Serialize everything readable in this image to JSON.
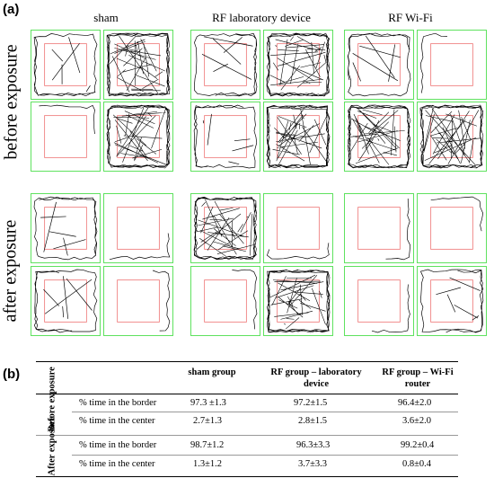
{
  "panel_a_label": "(a)",
  "panel_b_label": "(b)",
  "columns": [
    "sham",
    "RF laboratory device",
    "RF Wi-Fi"
  ],
  "rows": [
    "before exposure",
    "after exposure"
  ],
  "colors": {
    "arena_border": "#5fe25f",
    "center_zone": "#f08080",
    "track": "#000000"
  },
  "table": {
    "headers": [
      "sham group",
      "RF group – laboratory device",
      "RF group – Wi-Fi router"
    ],
    "groups": [
      {
        "label": "Before exposure",
        "rows": [
          {
            "measure": "% time in the border",
            "values": [
              "97.3 ±1.3",
              "97.2±1.5",
              "96.4±2.0"
            ]
          },
          {
            "measure": "% time in the center",
            "values": [
              "2.7±1.3",
              "2.8±1.5",
              "3.6±2.0"
            ]
          }
        ]
      },
      {
        "label": "After exposure",
        "rows": [
          {
            "measure": "% time in the border",
            "values": [
              "98.7±1.2",
              "96.3±3.3",
              "99.2±0.4"
            ]
          },
          {
            "measure": "% time in the center",
            "values": [
              "1.3±1.2",
              "3.7±3.3",
              "0.8±0.4"
            ]
          }
        ]
      }
    ]
  }
}
